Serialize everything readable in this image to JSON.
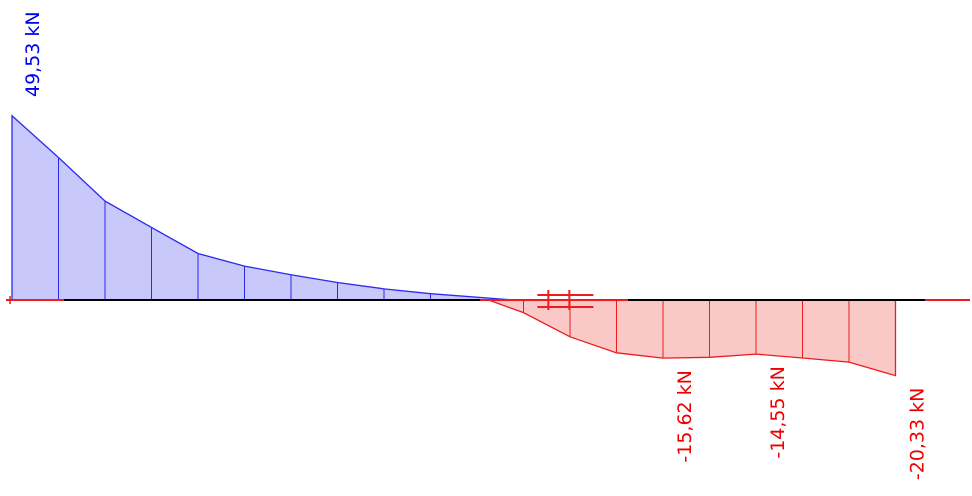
{
  "chart_data": {
    "type": "area",
    "title": "",
    "xlabel": "",
    "ylabel": "",
    "colors": {
      "positive_fill": "#c8c8fa",
      "positive_line": "#2a2af0",
      "negative_fill": "#fbc8c8",
      "negative_line": "#ee1c1c",
      "axis_beam": "#000000",
      "support": "#ee1c1c"
    },
    "positive_series": {
      "x": [
        0,
        1,
        2,
        3,
        4,
        5,
        6,
        7,
        8,
        9,
        10.8
      ],
      "values": [
        49.53,
        38.3,
        26.6,
        19.5,
        12.5,
        9.1,
        6.8,
        4.7,
        3.0,
        1.7,
        0
      ]
    },
    "negative_series": {
      "x": [
        10.25,
        11,
        12,
        13,
        14,
        15,
        16,
        17,
        18,
        19
      ],
      "values": [
        0,
        -3.4,
        -9.9,
        -14.2,
        -15.62,
        -15.4,
        -14.55,
        -15.6,
        -16.7,
        -20.33
      ]
    },
    "labels": [
      {
        "text": "49,53 kN",
        "x": 0,
        "value": 49.53,
        "sign": "positive"
      },
      {
        "text": "-15,62 kN",
        "x": 14,
        "value": -15.62,
        "sign": "negative"
      },
      {
        "text": "-14,55 kN",
        "x": 16,
        "value": -14.55,
        "sign": "negative"
      },
      {
        "text": "-20,33 kN",
        "x": 19,
        "value": -20.33,
        "sign": "negative"
      }
    ],
    "joint_x": 11.9
  }
}
